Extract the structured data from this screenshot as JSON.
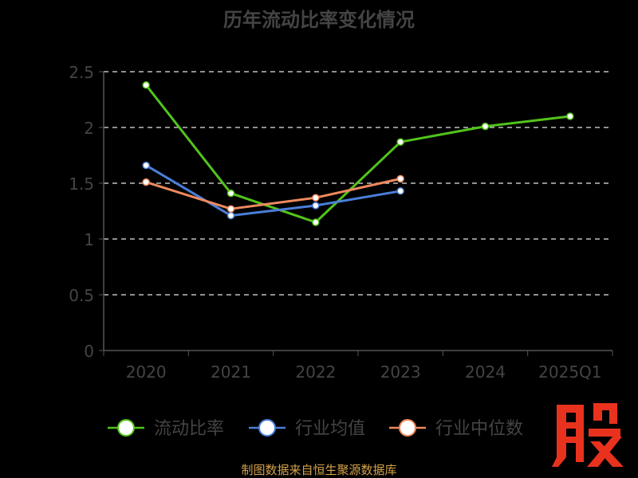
{
  "chart_data": {
    "type": "line",
    "title": "历年流动比率变化情况",
    "categories": [
      "2020",
      "2021",
      "2022",
      "2023",
      "2024",
      "2025Q1"
    ],
    "ylim": [
      0,
      2.5
    ],
    "yticks": [
      "0",
      "0.5",
      "1",
      "1.5",
      "2",
      "2.5"
    ],
    "grid": true,
    "legend_position": "bottom",
    "series": [
      {
        "name": "流动比率",
        "color": "#52c41a",
        "values": [
          2.38,
          1.41,
          1.15,
          1.87,
          2.01,
          2.1
        ]
      },
      {
        "name": "行业均值",
        "color": "#4a7fd9",
        "values": [
          1.66,
          1.21,
          1.3,
          1.43,
          null,
          null
        ]
      },
      {
        "name": "行业中位数",
        "color": "#ee8a5e",
        "values": [
          1.51,
          1.27,
          1.37,
          1.54,
          null,
          null
        ]
      }
    ]
  },
  "footer": {
    "source": "制图数据来自恒生聚源数据库"
  },
  "logo": {
    "text": "股",
    "color": "#e8321e",
    "icon": "gu-logo-icon"
  }
}
